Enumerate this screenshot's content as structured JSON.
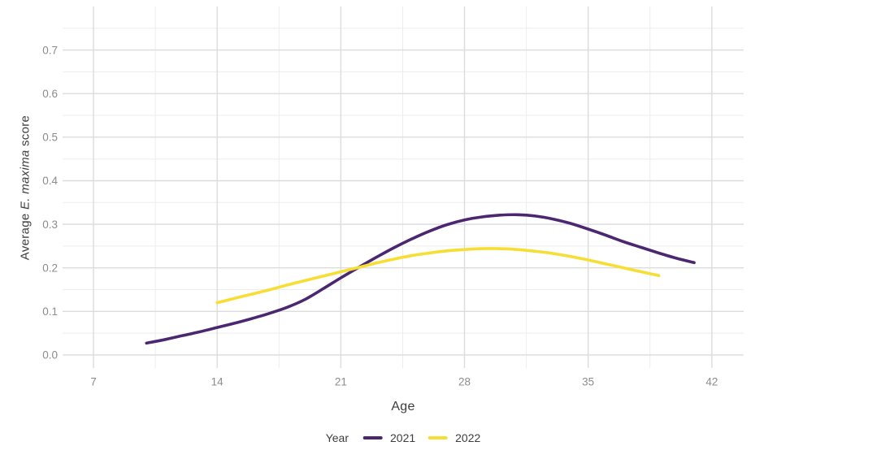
{
  "chart_data": {
    "type": "line",
    "title": "",
    "xlabel": "Age",
    "ylabel": "Average E. maxima score",
    "ylabel_parts": [
      {
        "text": "Average "
      },
      {
        "text": "E. maxima"
      },
      {
        "text": " score"
      }
    ],
    "x_tick_labels": [
      "7",
      "14",
      "21",
      "28",
      "35",
      "42"
    ],
    "x_tick_values": [
      7,
      14,
      21,
      28,
      35,
      42
    ],
    "x_minor_ticks": [
      10.5,
      17.5,
      24.5,
      31.5,
      38.5
    ],
    "y_tick_labels": [
      "0.0",
      "0.1",
      "0.2",
      "0.3",
      "0.4",
      "0.5",
      "0.6",
      "0.7"
    ],
    "y_tick_values": [
      0.0,
      0.1,
      0.2,
      0.3,
      0.4,
      0.5,
      0.6,
      0.7
    ],
    "y_minor_ticks": [
      0.05,
      0.15,
      0.25,
      0.35,
      0.45,
      0.55,
      0.65,
      0.75
    ],
    "xlim": [
      5.25,
      43.8
    ],
    "ylim": [
      -0.03,
      0.8
    ],
    "grid": "major+minor",
    "colors": {
      "major_grid": "#dcdcdc",
      "minor_grid": "#ededed",
      "tick_label": "#8c8c8c",
      "axis_title": "#3d3d3d"
    },
    "legend": {
      "title": "Year",
      "position": "bottom"
    },
    "series": [
      {
        "name": "2021",
        "color": "#4b2770",
        "x": [
          10,
          11,
          12,
          13,
          14,
          15,
          16,
          17,
          18,
          19,
          20,
          21,
          22,
          23,
          24,
          25,
          26,
          27,
          28,
          29,
          30,
          31,
          32,
          33,
          34,
          35,
          36,
          37,
          38,
          39,
          40,
          41
        ],
        "y": [
          0.027,
          0.035,
          0.044,
          0.053,
          0.063,
          0.073,
          0.084,
          0.096,
          0.11,
          0.128,
          0.152,
          0.177,
          0.201,
          0.224,
          0.246,
          0.266,
          0.284,
          0.299,
          0.31,
          0.317,
          0.321,
          0.322,
          0.319,
          0.312,
          0.302,
          0.289,
          0.275,
          0.26,
          0.247,
          0.234,
          0.222,
          0.212
        ]
      },
      {
        "name": "2022",
        "color": "#f6de34",
        "x": [
          14,
          15,
          16,
          17,
          18,
          19,
          20,
          21,
          22,
          23,
          24,
          25,
          26,
          27,
          28,
          29,
          30,
          31,
          32,
          33,
          34,
          35,
          36,
          37,
          38,
          39
        ],
        "y": [
          0.12,
          0.13,
          0.14,
          0.15,
          0.161,
          0.171,
          0.181,
          0.191,
          0.201,
          0.211,
          0.22,
          0.228,
          0.234,
          0.239,
          0.242,
          0.244,
          0.244,
          0.242,
          0.238,
          0.233,
          0.226,
          0.218,
          0.209,
          0.2,
          0.191,
          0.182
        ]
      }
    ]
  }
}
